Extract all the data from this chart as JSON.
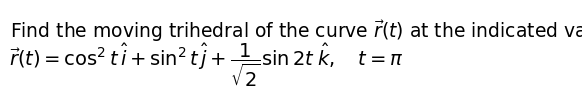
{
  "line1": "Find the moving trihedral of the curve $\\vec{r}(t)$ at the indicated value:",
  "line2": "$\\vec{r}(t) = \\cos^2 t\\,\\hat{i} + \\sin^2 t\\,\\hat{j} + \\dfrac{1}{\\sqrt{2}}\\sin 2t\\;\\hat{k}, \\quad t = \\pi$",
  "background_color": "#ffffff",
  "text_color": "#000000",
  "fontsize_line1": 13.5,
  "fontsize_line2": 14.0
}
